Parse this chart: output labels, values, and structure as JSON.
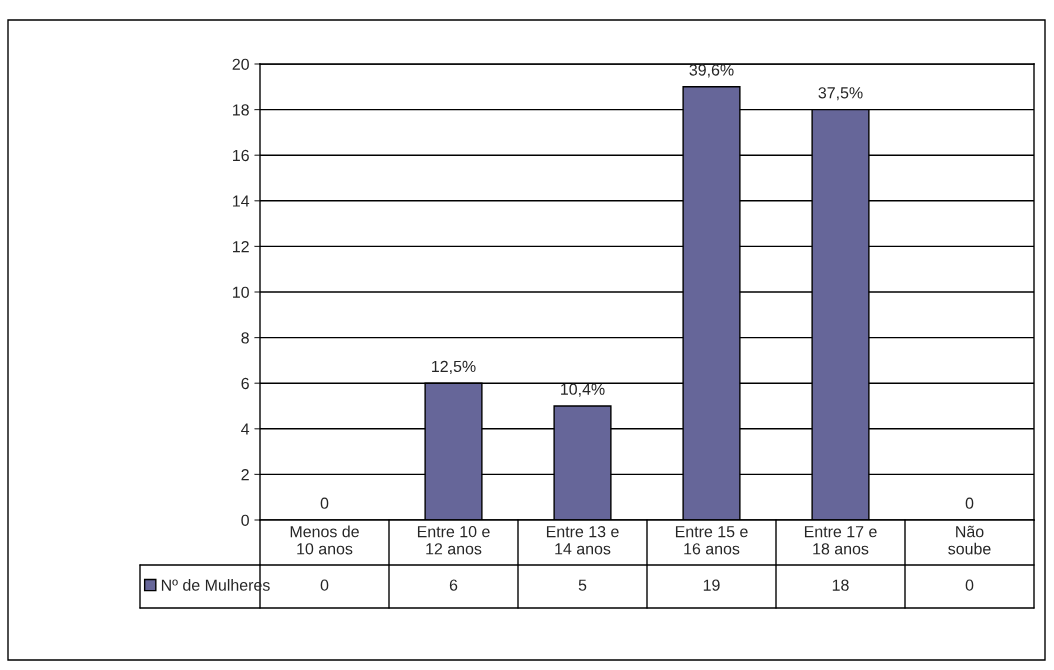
{
  "chart_data": {
    "type": "bar",
    "categories": [
      "Menos de\n10 anos",
      "Entre 10 e\n12 anos",
      "Entre 13 e\n14 anos",
      "Entre 15 e\n16 anos",
      "Entre 17 e\n18 anos",
      "Não\nsoube"
    ],
    "series": [
      {
        "name": "Nº de Mulheres",
        "color": "#666699",
        "values": [
          0,
          6,
          5,
          19,
          18,
          0
        ]
      }
    ],
    "annotations": [
      {
        "text": "0",
        "x": "Menos de\n10 anos",
        "y": 0
      },
      {
        "text": "12,5%",
        "x": "Entre 10 e\n12 anos",
        "y": 6
      },
      {
        "text": "10,4%",
        "x": "Entre 13 e\n14 anos",
        "y": 5
      },
      {
        "text": "39,6%",
        "x": "Entre 15 e\n16 anos",
        "y": 19
      },
      {
        "text": "37,5%",
        "x": "Entre 17 e\n18 anos",
        "y": 18
      },
      {
        "text": "0",
        "x": "Não\nsoube",
        "y": 0
      }
    ],
    "ylim": [
      0,
      20
    ],
    "yticks": [
      0,
      2,
      4,
      6,
      8,
      10,
      12,
      14,
      16,
      18,
      20
    ],
    "grid": "y",
    "legend": "bottom",
    "data_labels": true
  }
}
